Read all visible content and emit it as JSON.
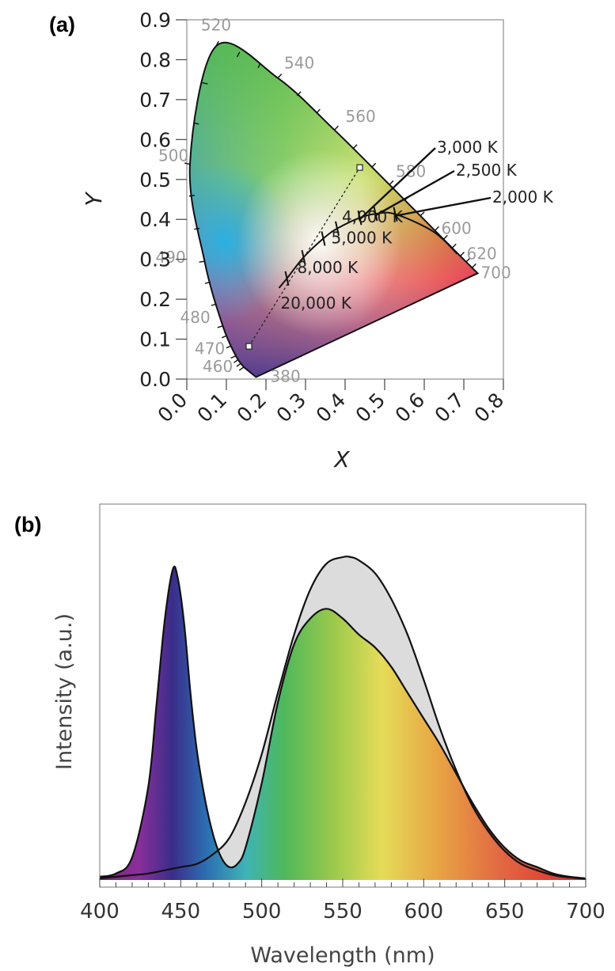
{
  "panels": {
    "a": {
      "label": "(a)"
    },
    "b": {
      "label": "(b)"
    }
  },
  "chart_data": [
    {
      "type": "scatter",
      "panel": "(a)",
      "xlabel": "X",
      "ylabel": "Y",
      "xlim": [
        0.0,
        0.8
      ],
      "ylim": [
        0.0,
        0.9
      ],
      "xticks": [
        "0.0",
        "0.1",
        "0.2",
        "0.3",
        "0.4",
        "0.5",
        "0.6",
        "0.7",
        "0.8"
      ],
      "yticks": [
        "0.0",
        "0.1",
        "0.2",
        "0.3",
        "0.4",
        "0.5",
        "0.6",
        "0.7",
        "0.8",
        "0.9"
      ],
      "grid": false,
      "spectral_locus": [
        {
          "wl": "380",
          "x": 0.175,
          "y": 0.005
        },
        {
          "wl": "460",
          "x": 0.144,
          "y": 0.03
        },
        {
          "wl": "470",
          "x": 0.124,
          "y": 0.058
        },
        {
          "wl": "480",
          "x": 0.091,
          "y": 0.133
        },
        {
          "wl": "490",
          "x": 0.045,
          "y": 0.295
        },
        {
          "wl": "500",
          "x": 0.008,
          "y": 0.538
        },
        {
          "wl": "520",
          "x": 0.074,
          "y": 0.834
        },
        {
          "wl": "540",
          "x": 0.23,
          "y": 0.754
        },
        {
          "wl": "560",
          "x": 0.373,
          "y": 0.624
        },
        {
          "wl": "580",
          "x": 0.512,
          "y": 0.487
        },
        {
          "wl": "600",
          "x": 0.627,
          "y": 0.372
        },
        {
          "wl": "620",
          "x": 0.691,
          "y": 0.308
        },
        {
          "wl": "700",
          "x": 0.735,
          "y": 0.265
        }
      ],
      "planckian_locus": [
        {
          "label": "20,000 K",
          "x": 0.253,
          "y": 0.252
        },
        {
          "label": "8,000 K",
          "x": 0.295,
          "y": 0.305
        },
        {
          "label": "5,000 K",
          "x": 0.345,
          "y": 0.352
        },
        {
          "label": "4,000 K",
          "x": 0.38,
          "y": 0.377
        },
        {
          "label": "3,000 K",
          "x": 0.437,
          "y": 0.404
        },
        {
          "label": "2,500 K",
          "x": 0.477,
          "y": 0.414
        },
        {
          "label": "2,000 K",
          "x": 0.527,
          "y": 0.413
        }
      ],
      "mixing_line": {
        "from": {
          "x": 0.157,
          "y": 0.082
        },
        "to": {
          "x": 0.437,
          "y": 0.53
        }
      }
    },
    {
      "type": "area",
      "panel": "(b)",
      "xlabel": "Wavelength (nm)",
      "ylabel": "Intensity (a.u.)",
      "xlim": [
        400,
        700
      ],
      "ylim": [
        0,
        1.0
      ],
      "xticks": [
        "400",
        "450",
        "500",
        "550",
        "600",
        "650",
        "700"
      ],
      "grid": false,
      "series": [
        {
          "x": [
            400,
            410,
            420,
            430,
            435,
            440,
            445,
            448,
            452,
            456,
            460,
            465,
            470,
            475,
            480,
            485,
            490,
            500,
            510,
            520,
            530,
            540,
            550,
            560,
            570,
            580,
            590,
            600,
            610,
            620,
            630,
            640,
            650,
            660,
            670,
            680,
            690,
            700
          ],
          "values": [
            0.01,
            0.02,
            0.07,
            0.29,
            0.54,
            0.8,
            0.96,
            0.94,
            0.8,
            0.58,
            0.4,
            0.25,
            0.14,
            0.07,
            0.04,
            0.05,
            0.1,
            0.3,
            0.55,
            0.73,
            0.81,
            0.84,
            0.81,
            0.76,
            0.72,
            0.66,
            0.58,
            0.5,
            0.42,
            0.33,
            0.24,
            0.16,
            0.1,
            0.06,
            0.04,
            0.02,
            0.01,
            0.005
          ]
        },
        {
          "x": [
            400,
            410,
            420,
            430,
            440,
            450,
            460,
            470,
            480,
            490,
            500,
            510,
            520,
            530,
            540,
            550,
            555,
            560,
            570,
            580,
            590,
            600,
            610,
            620,
            630,
            640,
            650,
            660,
            670,
            680,
            690,
            700
          ],
          "values": [
            0.005,
            0.01,
            0.015,
            0.02,
            0.03,
            0.04,
            0.05,
            0.08,
            0.13,
            0.24,
            0.39,
            0.58,
            0.76,
            0.9,
            0.98,
            1.0,
            1.0,
            0.99,
            0.95,
            0.87,
            0.76,
            0.62,
            0.47,
            0.34,
            0.23,
            0.15,
            0.09,
            0.05,
            0.03,
            0.015,
            0.008,
            0.004
          ]
        }
      ]
    }
  ]
}
